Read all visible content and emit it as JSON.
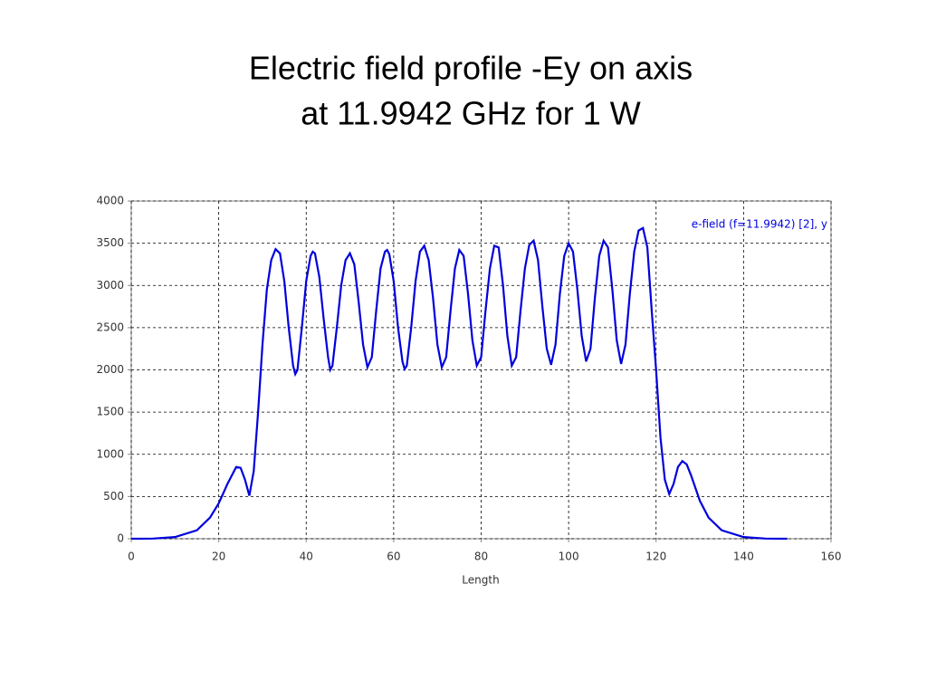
{
  "chart_data": {
    "type": "line",
    "title": "Electric field profile -Ey on axis",
    "subtitle": "at 11.9942 GHz for 1 W",
    "x_label": "Length",
    "x": [
      0,
      5,
      10,
      15,
      18,
      20,
      22,
      24,
      25,
      26,
      27,
      28,
      29,
      30,
      31,
      32,
      33,
      34,
      35,
      36,
      37,
      37.5,
      38,
      39,
      40,
      41,
      41.5,
      42,
      43,
      44,
      45,
      45.5,
      46,
      47,
      48,
      49,
      50,
      51,
      52,
      53,
      54,
      55,
      56,
      57,
      58,
      58.5,
      59,
      60,
      61,
      62,
      62.5,
      63,
      64,
      65,
      66,
      67,
      68,
      69,
      70,
      71,
      72,
      73,
      74,
      75,
      76,
      77,
      78,
      79,
      80,
      81,
      82,
      83,
      84,
      85,
      86,
      87,
      88,
      89,
      90,
      91,
      92,
      93,
      94,
      95,
      96,
      97,
      98,
      99,
      100,
      101,
      102,
      103,
      104,
      105,
      106,
      107,
      108,
      109,
      110,
      111,
      112,
      113,
      114,
      115,
      116,
      117,
      118,
      119,
      120,
      121,
      122,
      123,
      124,
      125,
      126,
      127,
      128,
      130,
      132,
      135,
      140,
      145,
      150
    ],
    "series": [
      {
        "name": "e-field (f=11.9942) [2], y",
        "color": "#0000dd",
        "values": [
          0,
          2,
          20,
          100,
          250,
          420,
          650,
          850,
          840,
          700,
          510,
          800,
          1500,
          2300,
          2950,
          3300,
          3430,
          3380,
          3050,
          2500,
          2050,
          1950,
          2000,
          2500,
          3050,
          3350,
          3400,
          3380,
          3100,
          2600,
          2150,
          2000,
          2050,
          2500,
          3000,
          3300,
          3380,
          3250,
          2800,
          2300,
          2030,
          2150,
          2700,
          3200,
          3400,
          3420,
          3370,
          3050,
          2500,
          2100,
          2010,
          2050,
          2500,
          3050,
          3400,
          3470,
          3300,
          2850,
          2300,
          2030,
          2150,
          2700,
          3200,
          3420,
          3350,
          2900,
          2350,
          2050,
          2150,
          2700,
          3200,
          3470,
          3450,
          3000,
          2400,
          2050,
          2150,
          2700,
          3200,
          3480,
          3530,
          3300,
          2750,
          2250,
          2060,
          2300,
          2900,
          3350,
          3500,
          3400,
          2950,
          2400,
          2100,
          2250,
          2850,
          3350,
          3530,
          3450,
          2950,
          2350,
          2070,
          2300,
          2900,
          3400,
          3650,
          3680,
          3450,
          2700,
          2000,
          1200,
          700,
          530,
          650,
          850,
          920,
          880,
          750,
          450,
          250,
          100,
          20,
          2,
          0
        ]
      }
    ],
    "xlim": [
      0,
      160
    ],
    "xticks": [
      0,
      20,
      40,
      60,
      80,
      100,
      120,
      140,
      160
    ],
    "ylim": [
      0,
      4000
    ],
    "yticks": [
      0,
      500,
      1000,
      1500,
      2000,
      2500,
      3000,
      3500,
      4000
    ],
    "grid": true,
    "legend": "top-right"
  }
}
